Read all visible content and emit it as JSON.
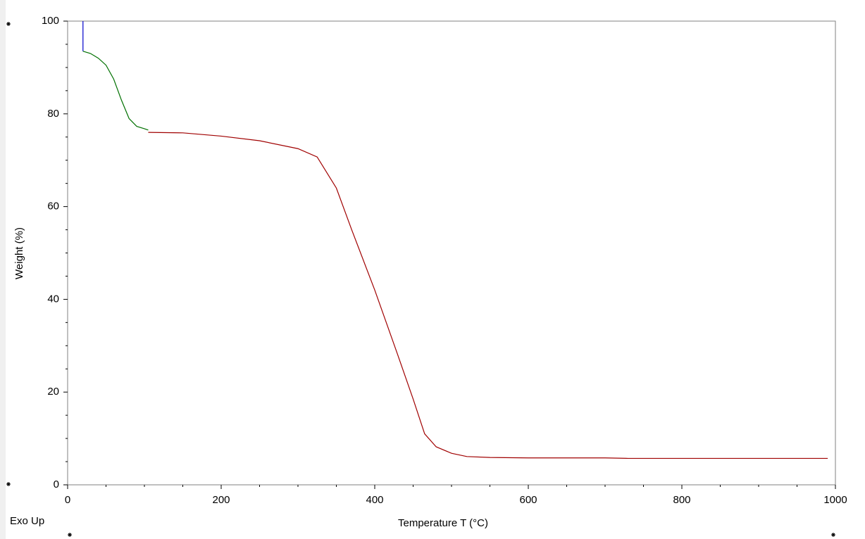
{
  "chart_data": {
    "type": "line",
    "xlabel": "Temperature T (°C)",
    "ylabel": "Weight (%)",
    "annotation": "Exo Up",
    "xlim": [
      0,
      1000
    ],
    "ylim": [
      0,
      100
    ],
    "xticks": [
      0,
      200,
      400,
      600,
      800,
      1000
    ],
    "yticks": [
      0,
      20,
      40,
      60,
      80,
      100
    ],
    "xminorticks": [
      50,
      100,
      150,
      250,
      300,
      350,
      450,
      500,
      550,
      650,
      700,
      750,
      850,
      900,
      950
    ],
    "yminorticks": [
      5,
      10,
      15,
      25,
      30,
      35,
      45,
      50,
      55,
      65,
      70,
      75,
      85,
      90,
      95
    ],
    "series": [
      {
        "color": "#0000cc",
        "x": [
          20,
          20
        ],
        "values": [
          100,
          93.5
        ]
      },
      {
        "color": "#007000",
        "x": [
          20,
          30,
          40,
          50,
          60,
          70,
          80,
          90,
          100,
          105
        ],
        "values": [
          93.5,
          93,
          92,
          90.5,
          87.5,
          83,
          79,
          77.3,
          76.8,
          76.5
        ]
      },
      {
        "color": "#a00000",
        "x": [
          105,
          150,
          200,
          250,
          300,
          325,
          350,
          370,
          400,
          430,
          450,
          465,
          480,
          500,
          520,
          550,
          600,
          700,
          730,
          800,
          900,
          990
        ],
        "values": [
          76,
          75.9,
          75.2,
          74.2,
          72.5,
          70.7,
          64,
          55,
          42,
          28,
          18.5,
          11,
          8.2,
          6.8,
          6.1,
          5.9,
          5.8,
          5.8,
          5.7,
          5.7,
          5.7,
          5.7
        ]
      }
    ]
  }
}
